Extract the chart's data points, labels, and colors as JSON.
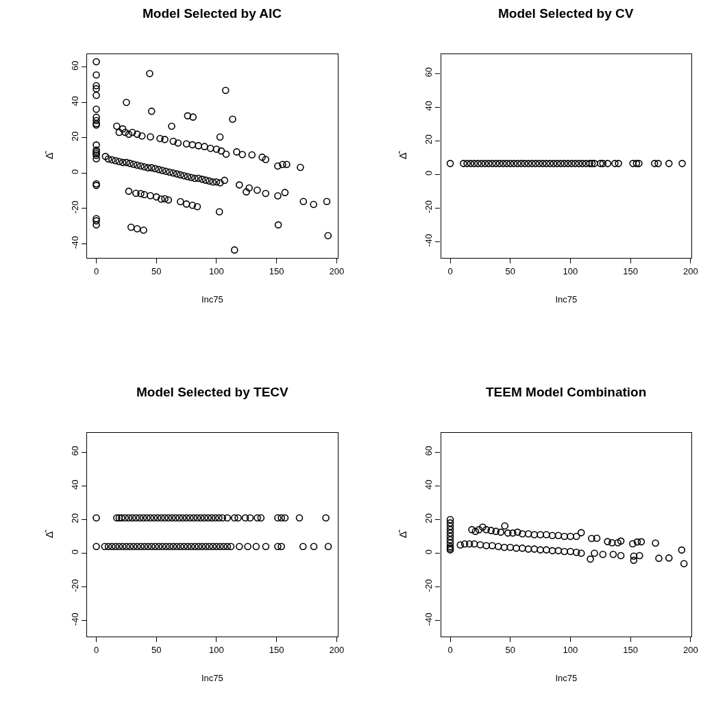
{
  "chart_data": [
    {
      "type": "scatter",
      "title": "Model Selected by AIC",
      "xlabel": "Inc75",
      "ylabel": "Δ̂",
      "marker": "circle",
      "color": "#000000",
      "xlim": [
        -7.7,
        200.8
      ],
      "ylim": [
        -47.9,
        67.3
      ],
      "xticks": [
        0,
        50,
        100,
        150,
        200
      ],
      "yticks": [
        -40,
        -20,
        0,
        20,
        40,
        60
      ],
      "x": [
        0,
        0,
        0,
        0,
        0,
        0,
        0,
        0,
        0,
        0,
        0,
        0,
        0,
        0,
        0,
        0,
        0,
        0,
        0,
        0,
        0,
        44.4,
        25,
        46,
        107.6,
        76,
        80.5,
        113.4,
        62.7,
        102.9,
        102.4,
        151.4,
        192.8,
        28.9,
        34,
        39.3,
        115,
        17,
        19,
        22,
        24,
        27,
        30,
        34,
        38,
        45,
        53,
        57,
        64,
        68,
        75,
        80,
        85,
        90,
        95,
        100,
        104,
        108,
        116.8,
        121.5,
        129.5,
        138,
        140.9,
        151,
        155,
        158.4,
        169.8,
        7.6,
        10,
        13,
        16,
        19,
        22,
        25,
        28,
        31,
        34,
        37,
        40,
        43,
        46,
        49,
        52,
        55,
        58,
        61,
        64,
        67,
        70,
        73,
        76,
        79,
        82,
        85,
        88,
        91,
        94,
        97,
        100,
        103,
        106.7,
        119,
        124.8,
        127.2,
        133.9,
        140.9,
        151,
        157,
        172.3,
        180.8,
        191.8,
        27,
        33,
        37,
        40,
        45,
        50,
        54,
        57,
        60,
        70,
        75,
        80,
        84
      ],
      "values": [
        63,
        55.5,
        49.4,
        47.7,
        44,
        36.1,
        31.6,
        29.7,
        28,
        27.2,
        15.9,
        13,
        12,
        11,
        10,
        8.1,
        -6.1,
        -7,
        -25.8,
        -27,
        -29.3,
        56.3,
        40,
        35,
        46.8,
        32.4,
        31.7,
        30.5,
        26.5,
        20.4,
        -21.9,
        -29.3,
        -35.4,
        -30.6,
        -31.5,
        -32.3,
        -43.5,
        26.5,
        23,
        25,
        23,
        22,
        23,
        22,
        21,
        20.5,
        19.5,
        19,
        18,
        17,
        16.5,
        16,
        15.5,
        15,
        14,
        13.5,
        12.5,
        10.7,
        12,
        10.5,
        10.3,
        9,
        7.7,
        4,
        4.9,
        4.9,
        3.2,
        9.4,
        8,
        7.5,
        7,
        6.5,
        6,
        6,
        5.5,
        5,
        4.5,
        4,
        3.5,
        3,
        3,
        2.5,
        2,
        1.5,
        1,
        0.5,
        0,
        -0.5,
        -1,
        -1.5,
        -2,
        -2.5,
        -3,
        -3,
        -3.5,
        -4,
        -4.5,
        -5,
        -5,
        -5.5,
        -4.1,
        -6.7,
        -10.6,
        -8.4,
        -9.7,
        -11.5,
        -12.9,
        -11,
        -16.1,
        -17.7,
        -16.1,
        -10.3,
        -11.4,
        -11.6,
        -12.2,
        -12.8,
        -13.5,
        -14.7,
        -14.5,
        -15.2,
        -16.2,
        -17.5,
        -18.2,
        -19
      ]
    },
    {
      "type": "scatter",
      "title": "Model Selected by CV",
      "xlabel": "Inc75",
      "ylabel": "Δ̂",
      "marker": "circle",
      "color": "#000000",
      "xlim": [
        -7.7,
        200.8
      ],
      "ylim": [
        -49.5,
        71.5
      ],
      "xticks": [
        0,
        50,
        100,
        150,
        200
      ],
      "yticks": [
        -40,
        -20,
        0,
        20,
        40,
        60
      ],
      "x": [
        0,
        11,
        14,
        17,
        20,
        23,
        26,
        29,
        32,
        35,
        38,
        41,
        44,
        47,
        50,
        53,
        56,
        59,
        62,
        65,
        68,
        71,
        74,
        77,
        80,
        83,
        86,
        89,
        92,
        95,
        98,
        101,
        104,
        107,
        110,
        113,
        116,
        118,
        120,
        125,
        127,
        131,
        137,
        140,
        152,
        155,
        157,
        170,
        173,
        182,
        193
      ],
      "values": [
        6.5,
        6.5,
        6.5,
        6.5,
        6.5,
        6.5,
        6.5,
        6.5,
        6.5,
        6.5,
        6.5,
        6.5,
        6.5,
        6.5,
        6.5,
        6.5,
        6.5,
        6.5,
        6.5,
        6.5,
        6.5,
        6.5,
        6.5,
        6.5,
        6.5,
        6.5,
        6.5,
        6.5,
        6.5,
        6.5,
        6.5,
        6.5,
        6.5,
        6.5,
        6.5,
        6.5,
        6.5,
        6.5,
        6.5,
        6.5,
        6.5,
        6.5,
        6.5,
        6.5,
        6.5,
        6.5,
        6.5,
        6.5,
        6.5,
        6.5,
        6.5
      ]
    },
    {
      "type": "scatter",
      "title": "Model Selected by TECV",
      "xlabel": "Inc75",
      "ylabel": "Δ̂",
      "marker": "circle",
      "color": "#000000",
      "xlim": [
        -7.7,
        200.8
      ],
      "ylim": [
        -49.5,
        71.5
      ],
      "xticks": [
        0,
        50,
        100,
        150,
        200
      ],
      "yticks": [
        -40,
        -20,
        0,
        20,
        40,
        60
      ],
      "x": [
        0,
        17,
        19,
        21,
        24,
        27,
        30,
        33,
        36,
        39,
        42,
        45,
        48,
        51,
        54,
        57,
        60,
        63,
        66,
        69,
        72,
        75,
        78,
        81,
        84,
        87,
        90,
        93,
        96,
        99,
        102,
        105,
        109,
        115,
        118,
        124,
        128,
        134,
        137,
        151,
        154,
        157,
        169,
        191,
        0,
        7,
        10,
        13,
        16,
        19,
        22,
        25,
        28,
        31,
        34,
        37,
        40,
        43,
        46,
        49,
        52,
        55,
        58,
        61,
        64,
        67,
        70,
        73,
        76,
        79,
        82,
        85,
        88,
        91,
        94,
        97,
        100,
        103,
        106,
        109,
        112,
        119,
        126,
        133,
        141,
        151,
        154,
        172,
        181,
        193
      ],
      "values": [
        21,
        21,
        21,
        21,
        21,
        21,
        21,
        21,
        21,
        21,
        21,
        21,
        21,
        21,
        21,
        21,
        21,
        21,
        21,
        21,
        21,
        21,
        21,
        21,
        21,
        21,
        21,
        21,
        21,
        21,
        21,
        21,
        21,
        21,
        21,
        21,
        21,
        21,
        21,
        21,
        21,
        21,
        21,
        21,
        4,
        4,
        4,
        4,
        4,
        4,
        4,
        4,
        4,
        4,
        4,
        4,
        4,
        4,
        4,
        4,
        4,
        4,
        4,
        4,
        4,
        4,
        4,
        4,
        4,
        4,
        4,
        4,
        4,
        4,
        4,
        4,
        4,
        4,
        4,
        4,
        4,
        4,
        4,
        4,
        4,
        4,
        4,
        4,
        4,
        4
      ]
    },
    {
      "type": "scatter",
      "title": "TEEM Model Combination",
      "xlabel": "Inc75",
      "ylabel": "Δ̂",
      "marker": "circle",
      "color": "#000000",
      "xlim": [
        -7.7,
        200.8
      ],
      "ylim": [
        -49.5,
        71.5
      ],
      "xticks": [
        0,
        50,
        100,
        150,
        200
      ],
      "yticks": [
        -40,
        -20,
        0,
        20,
        40,
        60
      ],
      "x": [
        0,
        0,
        0,
        0,
        0,
        0,
        0,
        0,
        0,
        0,
        0,
        18,
        21,
        24,
        27,
        30,
        34,
        38,
        42,
        45.4,
        48,
        52,
        56,
        60,
        65,
        70,
        75,
        80,
        85,
        90,
        95,
        100,
        105,
        109,
        117.6,
        122,
        130.9,
        134.7,
        139.4,
        142,
        151.8,
        155.6,
        159,
        170.8,
        192.6,
        8.4,
        12,
        16,
        20,
        25,
        30,
        35,
        40,
        45,
        50,
        55,
        60,
        65,
        70,
        75,
        80,
        85,
        90,
        95,
        100,
        105,
        109,
        116.6,
        120,
        127,
        135.6,
        142,
        152.7,
        152.7,
        157.5,
        173.6,
        182,
        194.5
      ],
      "values": [
        20,
        18,
        16,
        14,
        12,
        10,
        8,
        6,
        4,
        3,
        2,
        14,
        13,
        14,
        15.5,
        14,
        13.5,
        13,
        12.5,
        16.2,
        12,
        12,
        12.5,
        11.5,
        11.5,
        11,
        11,
        11,
        10.5,
        10.5,
        10,
        10,
        10,
        12.2,
        8.8,
        8.9,
        6.9,
        6.2,
        6.2,
        7.2,
        5.6,
        6.7,
        6.8,
        6,
        1.9,
        4.9,
        5.5,
        5.5,
        5.5,
        5,
        4.5,
        4.5,
        4,
        3.5,
        3.5,
        3,
        3,
        2.5,
        2.5,
        2,
        2,
        1.5,
        1.5,
        1,
        1,
        0.5,
        0,
        -3.5,
        0,
        -0.7,
        -0.7,
        -1.4,
        -4.2,
        -1.7,
        -1.4,
        -3,
        -2.8,
        -6.2
      ]
    }
  ]
}
